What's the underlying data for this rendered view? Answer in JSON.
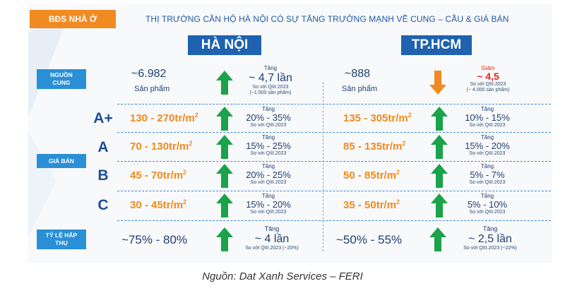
{
  "header": {
    "tag": "BĐS NHÀ Ở",
    "title": "THỊ TRƯỜNG CĂN HỘ HÀ NỘI CÓ SỰ TĂNG TRƯỞNG MẠNH VỀ CUNG – CẦU & GIÁ BÁN"
  },
  "cities": {
    "hanoi": "HÀ NỘI",
    "hcm": "TP.HCM"
  },
  "row_labels": {
    "supply": "NGUỒN CUNG",
    "price": "GIÁ BÁN",
    "absorption": "TỶ LỆ HẤP THỤ",
    "grades": [
      "A+",
      "A",
      "B",
      "C"
    ]
  },
  "chart_data": {
    "type": "table",
    "comparison_base": "QIII.2023",
    "supply": {
      "hanoi": {
        "value": "~6.982",
        "unit": "Sản phẩm",
        "direction": "up",
        "change_label": "Tăng",
        "change": "~ 4,7 lần",
        "note1": "So với QIII.2023",
        "note2": "(~1.500 sản phẩm)"
      },
      "hcm": {
        "value": "~888",
        "unit": "Sản phẩm",
        "direction": "down",
        "change_label": "Giảm",
        "change": "~ 4,5",
        "note1": "So với QIII.2023",
        "note2": "(~ 4.000 sản phẩm)"
      }
    },
    "price": [
      {
        "grade": "A+",
        "hanoi": {
          "range": "130 - 270tr/m",
          "change_label": "Tăng",
          "change": "20% - 35%",
          "note": "So với QIII.2023"
        },
        "hcm": {
          "range": "135 - 305tr/m",
          "change_label": "Tăng",
          "change": "10% - 15%",
          "note": "So với QIII.2023"
        }
      },
      {
        "grade": "A",
        "hanoi": {
          "range": "70 - 130tr/m",
          "change_label": "Tăng",
          "change": "15% - 25%",
          "note": "So với QIII.2023"
        },
        "hcm": {
          "range": "85 - 135tr/m",
          "change_label": "Tăng",
          "change": "15% - 20%",
          "note": "So với QIII.2023"
        }
      },
      {
        "grade": "B",
        "hanoi": {
          "range": "45 - 70tr/m",
          "change_label": "Tăng",
          "change": "20% - 25%",
          "note": "So với QIII.2023"
        },
        "hcm": {
          "range": "50 - 85tr/m",
          "change_label": "Tăng",
          "change": "5% - 7%",
          "note": "So với QIII.2023"
        }
      },
      {
        "grade": "C",
        "hanoi": {
          "range": "30 - 45tr/m",
          "change_label": "Tăng",
          "change": "15% - 20%",
          "note": "So với QIII.2023"
        },
        "hcm": {
          "range": "35 - 50tr/m",
          "change_label": "Tăng",
          "change": "5% - 10%",
          "note": "So với QIII.2023"
        }
      }
    ],
    "absorption": {
      "hanoi": {
        "value": "~75% - 80%",
        "change_label": "Tăng",
        "change": "~ 4 lần",
        "note": "So với QIII.2023 (~20%)"
      },
      "hcm": {
        "value": "~50% - 55%",
        "change_label": "Tăng",
        "change": "~ 2,5 lần",
        "note": "So với QIII.2023 (~22%)"
      }
    },
    "unit_exponent": "2"
  },
  "colors": {
    "up_arrow": "#1aa34a",
    "down_arrow": "#f28a22",
    "accent": "#1e62b0",
    "price": "#ee8a1f",
    "decrease": "#e0261e"
  },
  "source": "Nguồn: Dat Xanh Services – FERI"
}
